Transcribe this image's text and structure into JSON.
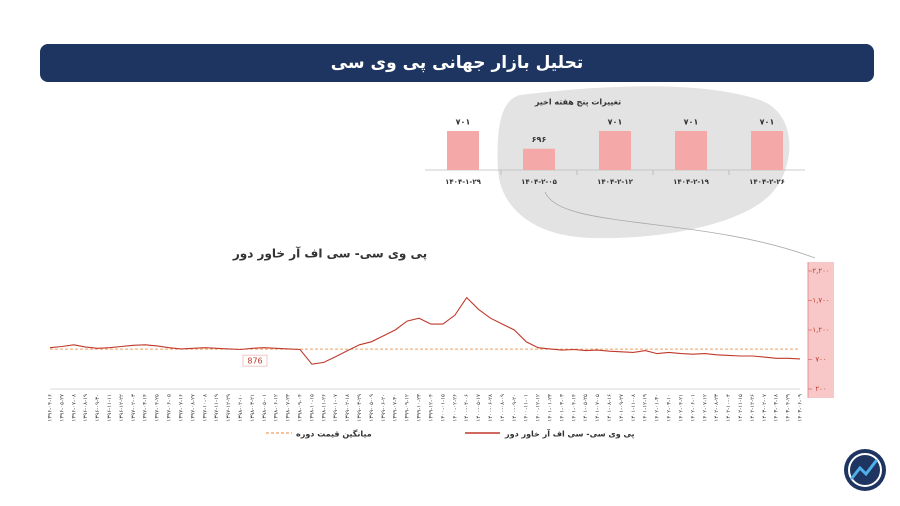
{
  "header": {
    "title": "تحلیل بازار جهانی پی وی سی"
  },
  "chart_data": [
    {
      "type": "bar",
      "title": "تغییرات پنج هفته اخیر",
      "categories": [
        "۱۴۰۴-۱-۲۹",
        "۱۴۰۴-۲-۰۵",
        "۱۴۰۴-۲-۱۲",
        "۱۴۰۴-۲-۱۹",
        "۱۴۰۴-۲-۲۶"
      ],
      "values": [
        701,
        696,
        701,
        701,
        701
      ],
      "value_labels": [
        "۷۰۱",
        "۶۹۶",
        "۷۰۱",
        "۷۰۱",
        "۷۰۱"
      ],
      "color": "#f4a9a8",
      "ylim": [
        690,
        701
      ]
    },
    {
      "type": "line",
      "title": "پی وی سی- سی اف آر خاور دور",
      "categories": [
        "۱۳۹۶-۰۴-۱۶",
        "۱۳۹۶-۰۵-۲۷",
        "۱۳۹۶-۰۷-۰۸",
        "۱۳۹۶-۰۸-۱۹",
        "۱۳۹۶-۰۹-۳۰",
        "۱۳۹۶-۱۱-۱۱",
        "۱۳۹۶-۱۲-۲۲",
        "۱۳۹۷-۰۲-۰۳",
        "۱۳۹۷-۰۳-۱۴",
        "۱۳۹۷-۰۴-۲۵",
        "۱۳۹۷-۰۶-۰۵",
        "۱۳۹۷-۰۷-۱۶",
        "۱۳۹۷-۰۸-۲۷",
        "۱۳۹۷-۱۰-۰۸",
        "۱۳۹۷-۱۱-۱۹",
        "۱۳۹۷-۱۲-۲۹",
        "۱۳۹۸-۰۲-۱۰",
        "۱۳۹۸-۰۳-۲۱",
        "۱۳۹۸-۰۵-۰۱",
        "۱۳۹۸-۰۶-۱۲",
        "۱۳۹۸-۰۷-۲۳",
        "۱۳۹۸-۰۹-۰۴",
        "۱۳۹۸-۱۰-۱۵",
        "۱۳۹۸-۱۱-۲۶",
        "۱۳۹۹-۰۱-۰۷",
        "۱۳۹۹-۰۲-۱۸",
        "۱۳۹۹-۰۳-۲۹",
        "۱۳۹۹-۰۵-۰۹",
        "۱۳۹۹-۰۶-۲۰",
        "۱۳۹۹-۰۷-۳۰",
        "۱۳۹۹-۰۹-۱۲",
        "۱۳۹۹-۱۰-۲۳",
        "۱۳۹۹-۱۲-۰۴",
        "۱۴۰۰-۰۱-۱۵",
        "۱۴۰۰-۰۲-۲۶",
        "۱۴۰۰-۰۴-۰۶",
        "۱۴۰۰-۰۵-۱۷",
        "۱۴۰۰-۰۶-۲۸",
        "۱۴۰۰-۰۸-۰۹",
        "۱۴۰۰-۰۹-۲۰",
        "۱۴۰۰-۱۱-۰۱",
        "۱۴۰۰-۱۲-۱۲",
        "۱۴۰۱-۰۱-۲۳",
        "۱۴۰۱-۰۳-۰۳",
        "۱۴۰۱-۰۴-۱۴",
        "۱۴۰۱-۰۵-۲۵",
        "۱۴۰۱-۰۷-۰۵",
        "۱۴۰۱-۰۸-۱۶",
        "۱۴۰۱-۰۹-۲۷",
        "۱۴۰۱-۱۱-۰۸",
        "۱۴۰۱-۱۲-۱۹",
        "۱۴۰۲-۰۱-۳۰",
        "۱۴۰۲-۰۳-۱۰",
        "۱۴۰۲-۰۴-۲۱",
        "۱۴۰۲-۰۶-۰۱",
        "۱۴۰۲-۰۷-۱۲",
        "۱۴۰۲-۰۸-۲۳",
        "۱۴۰۲-۱۰-۰۴",
        "۱۴۰۲-۱۱-۱۵",
        "۱۴۰۲-۱۲-۲۶",
        "۱۴۰۳-۰۲-۰۷",
        "۱۴۰۳-۰۳-۱۸",
        "۱۴۰۳-۰۴-۲۹",
        "۱۴۰۳-۰۶-۰۹"
      ],
      "series": [
        {
          "name": "پی وی سی- سی اف آر خاور دور",
          "color": "#c0392b",
          "values": [
            900,
            920,
            950,
            910,
            890,
            900,
            920,
            940,
            950,
            930,
            900,
            880,
            890,
            900,
            890,
            880,
            870,
            890,
            900,
            890,
            880,
            870,
            620,
            650,
            750,
            850,
            950,
            1000,
            1100,
            1200,
            1350,
            1400,
            1300,
            1300,
            1450,
            1750,
            1550,
            1400,
            1300,
            1200,
            1000,
            900,
            880,
            860,
            870,
            850,
            860,
            840,
            830,
            820,
            850,
            800,
            820,
            800,
            790,
            800,
            780,
            770,
            760,
            760,
            740,
            720,
            720,
            710
          ]
        }
      ],
      "average_line": {
        "name": "میانگین قیمت دوره",
        "value": 876,
        "color": "#f0a060"
      },
      "ylim": [
        200,
        2200
      ],
      "yticks": [
        {
          "value": 2200,
          "label": "۲,۲۰۰"
        },
        {
          "value": 1700,
          "label": "۱,۷۰۰"
        },
        {
          "value": 1200,
          "label": "۱,۲۰۰"
        },
        {
          "value": 700,
          "label": "۷۰۰"
        },
        {
          "value": 200,
          "label": "۲۰۰"
        }
      ]
    }
  ]
}
